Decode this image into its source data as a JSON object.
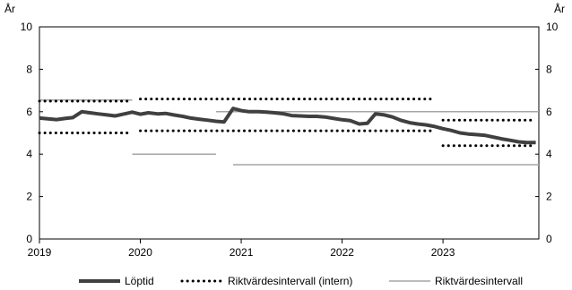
{
  "chart_data": {
    "type": "line",
    "ylabel_left": "År",
    "ylabel_right": "År",
    "ylim": [
      0,
      10
    ],
    "yticks": [
      0,
      2,
      4,
      6,
      8,
      10
    ],
    "xlim": [
      2019.0,
      2023.95
    ],
    "xticks": [
      {
        "value": 2019,
        "label": "2019"
      },
      {
        "value": 2020,
        "label": "2020"
      },
      {
        "value": 2021,
        "label": "2021"
      },
      {
        "value": 2022,
        "label": "2022"
      },
      {
        "value": 2023,
        "label": "2023"
      }
    ],
    "grid": false,
    "legend": "bottom",
    "series": [
      {
        "name": "Löptid",
        "style": "thick-solid",
        "color": "#404040",
        "points": [
          [
            2019.0,
            5.7
          ],
          [
            2019.17,
            5.63
          ],
          [
            2019.25,
            5.68
          ],
          [
            2019.33,
            5.72
          ],
          [
            2019.42,
            6.0
          ],
          [
            2019.5,
            5.95
          ],
          [
            2019.58,
            5.9
          ],
          [
            2019.67,
            5.85
          ],
          [
            2019.75,
            5.8
          ],
          [
            2019.83,
            5.88
          ],
          [
            2019.92,
            5.98
          ],
          [
            2020.0,
            5.88
          ],
          [
            2020.08,
            5.95
          ],
          [
            2020.17,
            5.9
          ],
          [
            2020.25,
            5.92
          ],
          [
            2020.33,
            5.85
          ],
          [
            2020.42,
            5.78
          ],
          [
            2020.5,
            5.7
          ],
          [
            2020.58,
            5.65
          ],
          [
            2020.67,
            5.6
          ],
          [
            2020.75,
            5.55
          ],
          [
            2020.83,
            5.52
          ],
          [
            2020.92,
            6.15
          ],
          [
            2021.0,
            6.05
          ],
          [
            2021.08,
            6.0
          ],
          [
            2021.17,
            6.0
          ],
          [
            2021.25,
            5.98
          ],
          [
            2021.33,
            5.95
          ],
          [
            2021.42,
            5.9
          ],
          [
            2021.5,
            5.82
          ],
          [
            2021.58,
            5.8
          ],
          [
            2021.67,
            5.78
          ],
          [
            2021.75,
            5.78
          ],
          [
            2021.83,
            5.75
          ],
          [
            2021.92,
            5.68
          ],
          [
            2022.0,
            5.62
          ],
          [
            2022.08,
            5.58
          ],
          [
            2022.17,
            5.42
          ],
          [
            2022.25,
            5.45
          ],
          [
            2022.33,
            5.9
          ],
          [
            2022.42,
            5.85
          ],
          [
            2022.5,
            5.75
          ],
          [
            2022.58,
            5.6
          ],
          [
            2022.67,
            5.48
          ],
          [
            2022.75,
            5.42
          ],
          [
            2022.83,
            5.38
          ],
          [
            2022.92,
            5.3
          ],
          [
            2023.0,
            5.2
          ],
          [
            2023.08,
            5.12
          ],
          [
            2023.17,
            5.0
          ],
          [
            2023.25,
            4.95
          ],
          [
            2023.33,
            4.92
          ],
          [
            2023.42,
            4.88
          ],
          [
            2023.5,
            4.8
          ],
          [
            2023.58,
            4.72
          ],
          [
            2023.67,
            4.65
          ],
          [
            2023.75,
            4.58
          ],
          [
            2023.83,
            4.55
          ],
          [
            2023.92,
            4.55
          ]
        ]
      },
      {
        "name": "Riktvärdesintervall (intern)",
        "style": "dotted",
        "color": "#000000",
        "segments": [
          {
            "x": [
              2019.0,
              2019.92
            ],
            "y": 6.5
          },
          {
            "x": [
              2019.0,
              2019.92
            ],
            "y": 5.0
          },
          {
            "x": [
              2020.0,
              2022.92
            ],
            "y": 6.6
          },
          {
            "x": [
              2020.0,
              2022.92
            ],
            "y": 5.1
          },
          {
            "x": [
              2023.0,
              2023.92
            ],
            "y": 5.6
          },
          {
            "x": [
              2023.0,
              2023.92
            ],
            "y": 4.4
          }
        ]
      },
      {
        "name": "Riktvärdesintervall",
        "style": "thin-solid",
        "color": "#a6a6a6",
        "segments": [
          {
            "x": [
              2019.0,
              2019.92
            ],
            "y": 6.55
          },
          {
            "x": [
              2019.92,
              2020.75
            ],
            "y": 4.0
          },
          {
            "x": [
              2020.75,
              2023.95
            ],
            "y": 6.0
          },
          {
            "x": [
              2020.92,
              2023.95
            ],
            "y": 3.5
          }
        ]
      }
    ]
  }
}
